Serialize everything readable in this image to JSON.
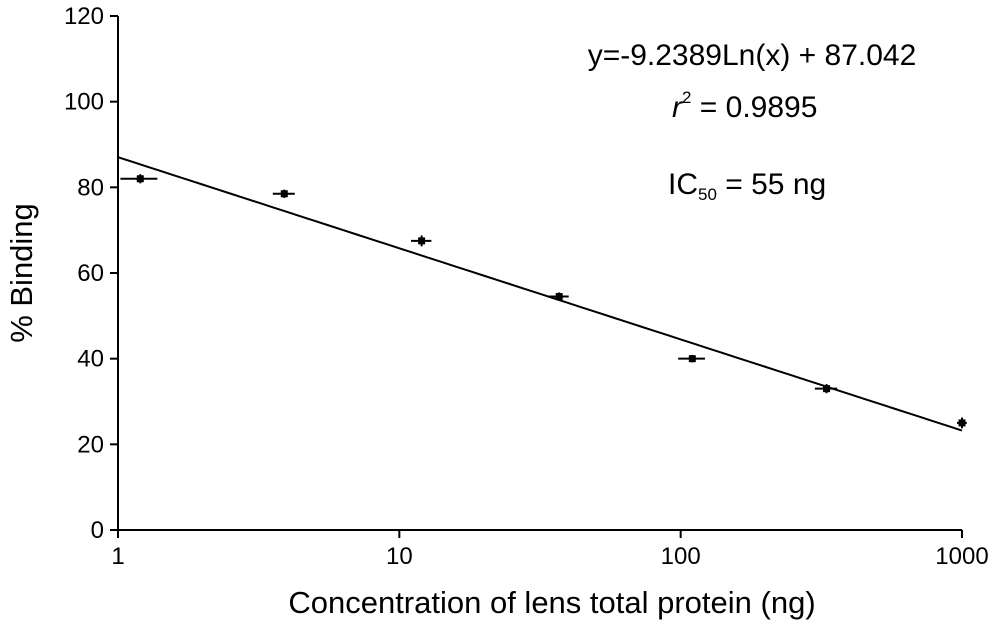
{
  "chart_data": {
    "type": "scatter",
    "xlabel": "Concentration of lens total protein (ng)",
    "ylabel": "% Binding",
    "x_scale": "log",
    "xlim": [
      1,
      1000
    ],
    "ylim": [
      0,
      120
    ],
    "x_ticks": [
      "1",
      "10",
      "100",
      "1000"
    ],
    "y_ticks": [
      "0",
      "20",
      "40",
      "60",
      "80",
      "100",
      "120"
    ],
    "grid": false,
    "legend": "none",
    "series": [
      {
        "x": [
          1.2,
          3.9,
          12,
          37,
          110,
          330,
          1000
        ],
        "y": [
          82,
          78.5,
          67.5,
          54.5,
          40,
          33,
          25
        ],
        "y_err": [
          0.6,
          0.5,
          0.8,
          0.5,
          0.4,
          0.6,
          0.8
        ],
        "x_err": [
          0.18,
          0.35,
          1.0,
          3.0,
          12.0,
          30.0,
          40.0
        ]
      }
    ],
    "fit": {
      "equation": "y = -9.2389Ln(x) + 87.042",
      "slope": -9.2389,
      "intercept": 87.042,
      "x_range": [
        1,
        1000
      ]
    },
    "annotations": {
      "equation": "y=-9.2389Ln(x) + 87.042",
      "r2_label": "r",
      "r2_sup": "2",
      "r2_value": " = 0.9895",
      "ic_label": "IC",
      "ic_sub": "50",
      "ic_value": " = 55 ng"
    },
    "colors": {
      "marker": "#000000",
      "line": "#000000"
    }
  }
}
